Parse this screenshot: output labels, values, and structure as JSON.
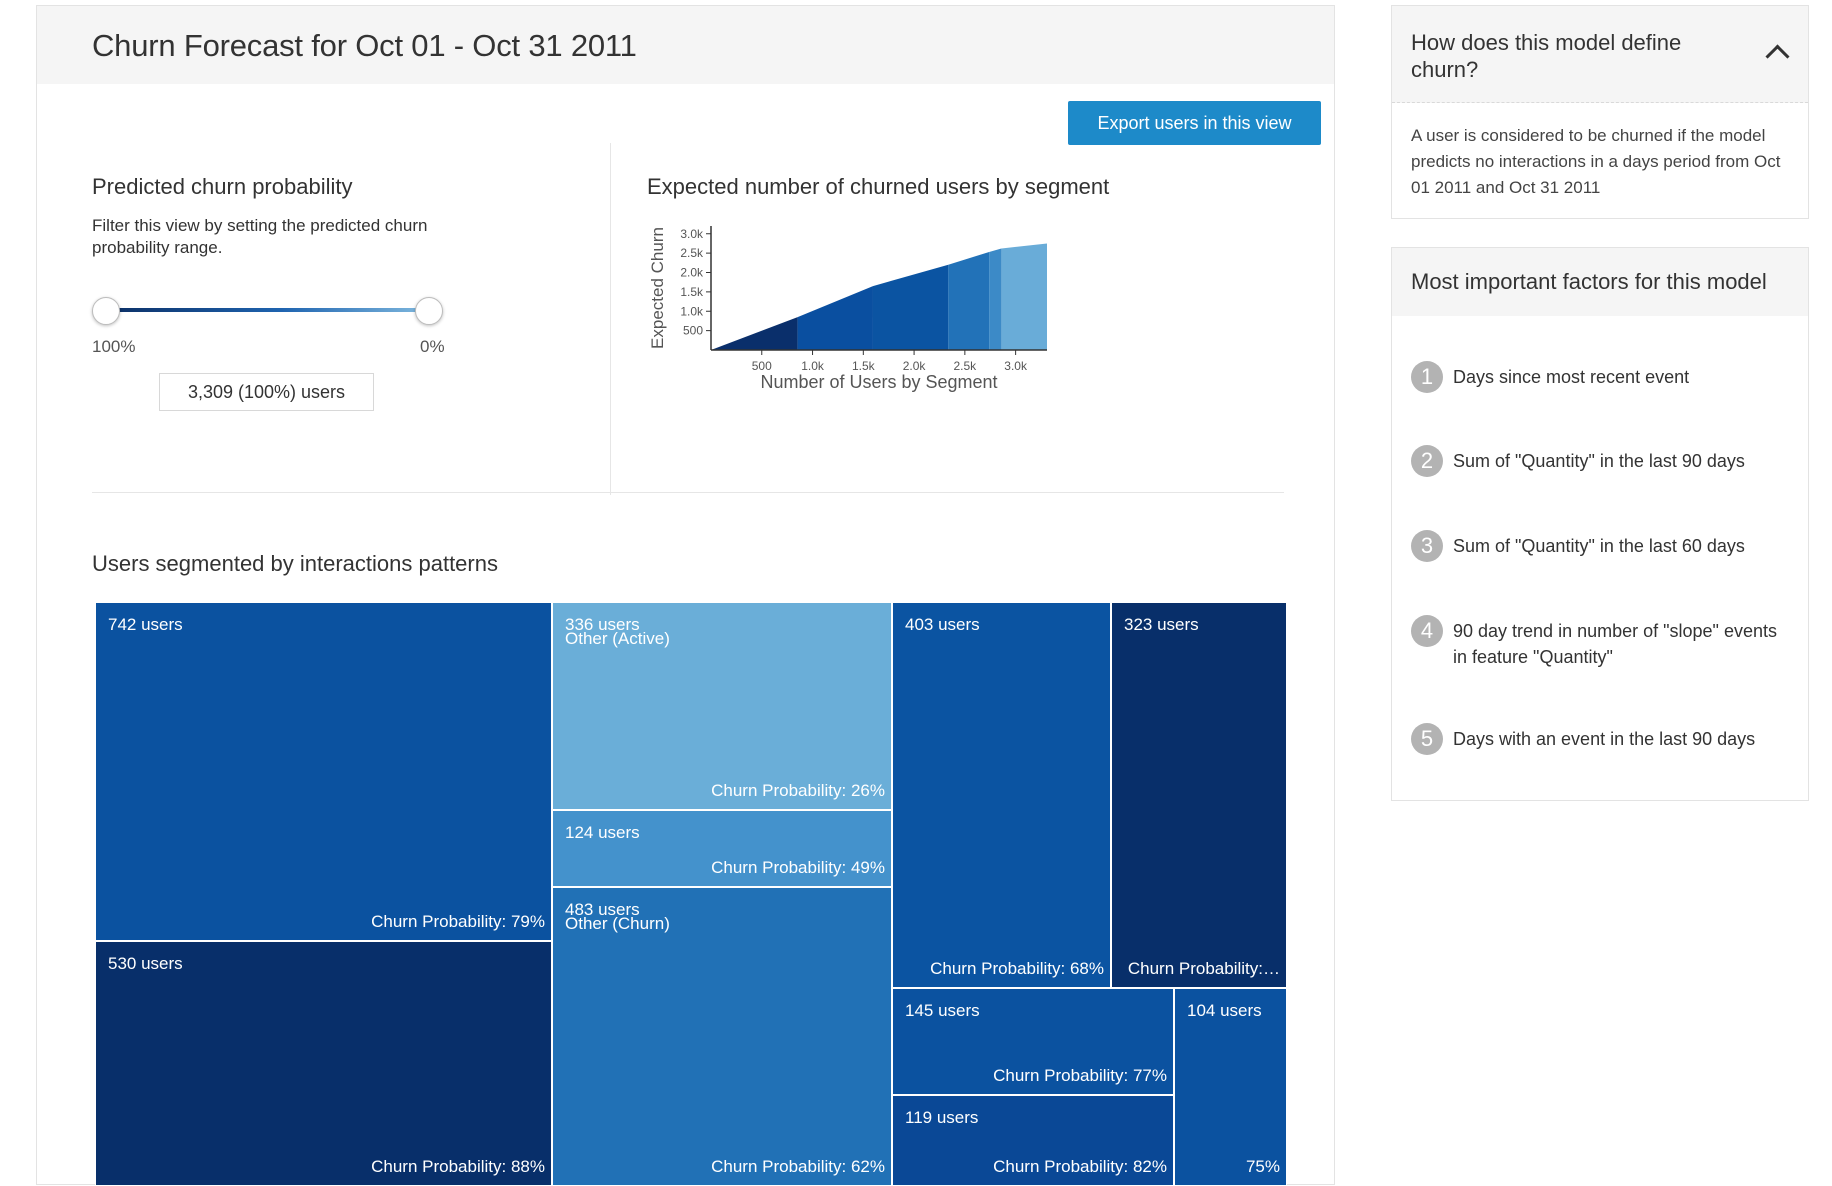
{
  "header": {
    "title": "Churn Forecast for Oct 01 - Oct 31 2011"
  },
  "toolbar": {
    "export_label": "Export users in this view"
  },
  "probability_filter": {
    "title": "Predicted churn probability",
    "description": "Filter this view by setting the predicted churn probability range.",
    "left_label": "100%",
    "right_label": "0%",
    "count_label": "3,309 (100%) users"
  },
  "segment_chart": {
    "title": "Expected number of churned users by segment",
    "xlabel": "Number of Users by Segment",
    "ylabel": "Expected Churn",
    "x_ticks": [
      "500",
      "1.0k",
      "1.5k",
      "2.0k",
      "2.5k",
      "3.0k"
    ],
    "y_ticks": [
      "500",
      "1.0k",
      "1.5k",
      "2.0k",
      "2.5k",
      "3.0k"
    ]
  },
  "chart_data": {
    "type": "area",
    "title": "Expected number of churned users by segment",
    "xlabel": "Number of Users by Segment",
    "ylabel": "Expected Churn",
    "xlim": [
      0,
      3309
    ],
    "ylim": [
      0,
      3200
    ],
    "x": [
      0,
      853,
      1595,
      2337,
      2739,
      2860,
      3309
    ],
    "y": [
      0,
      850,
      1650,
      2200,
      2530,
      2620,
      2750
    ],
    "segment_colors": [
      "#0a2f6b",
      "#0a4fa0",
      "#0b54a2",
      "#2272b8",
      "#3c8ac7",
      "#69acd8"
    ]
  },
  "segments": {
    "title": "Users segmented by interactions patterns",
    "tiles": [
      {
        "users": "742 users",
        "group": "",
        "prob": "Churn Probability: 79%",
        "color": "#0b52a0"
      },
      {
        "users": "530 users",
        "group": "",
        "prob": "Churn Probability: 88%",
        "color": "#082f6a"
      },
      {
        "users": "336 users",
        "group": "Other (Active)",
        "prob": "Churn Probability: 26%",
        "color": "#6aaed8"
      },
      {
        "users": "124 users",
        "group": "",
        "prob": "Churn Probability: 49%",
        "color": "#4492cc"
      },
      {
        "users": "483 users",
        "group": "Other (Churn)",
        "prob": "Churn Probability: 62%",
        "color": "#2171b6"
      },
      {
        "users": "403 users",
        "group": "",
        "prob": "Churn Probability: 68%",
        "color": "#0b54a2"
      },
      {
        "users": "323 users",
        "group": "",
        "prob": "Churn Probability:…",
        "color": "#082f6a"
      },
      {
        "users": "145 users",
        "group": "",
        "prob": "Churn Probability: 77%",
        "color": "#0b52a0"
      },
      {
        "users": "119 users",
        "group": "",
        "prob": "Churn Probability: 82%",
        "color": "#0a4896"
      },
      {
        "users": "104 users",
        "group": "",
        "prob": "75%",
        "color": "#0b52a0"
      }
    ]
  },
  "definition_card": {
    "title": "How does this model define churn?",
    "text": "A user is considered to be churned if the model predicts no interactions in a days period from Oct 01 2011 and Oct 31 2011"
  },
  "factors_card": {
    "title": "Most important factors for this model",
    "items": [
      {
        "num": "1",
        "text": "Days since most recent event"
      },
      {
        "num": "2",
        "text": "Sum of \"Quantity\" in the last 90 days"
      },
      {
        "num": "3",
        "text": "Sum of \"Quantity\" in the last 60 days"
      },
      {
        "num": "4",
        "text": "90 day trend in number of \"slope\" events in feature \"Quantity\""
      },
      {
        "num": "5",
        "text": "Days with an event in the last 90 days"
      }
    ]
  }
}
